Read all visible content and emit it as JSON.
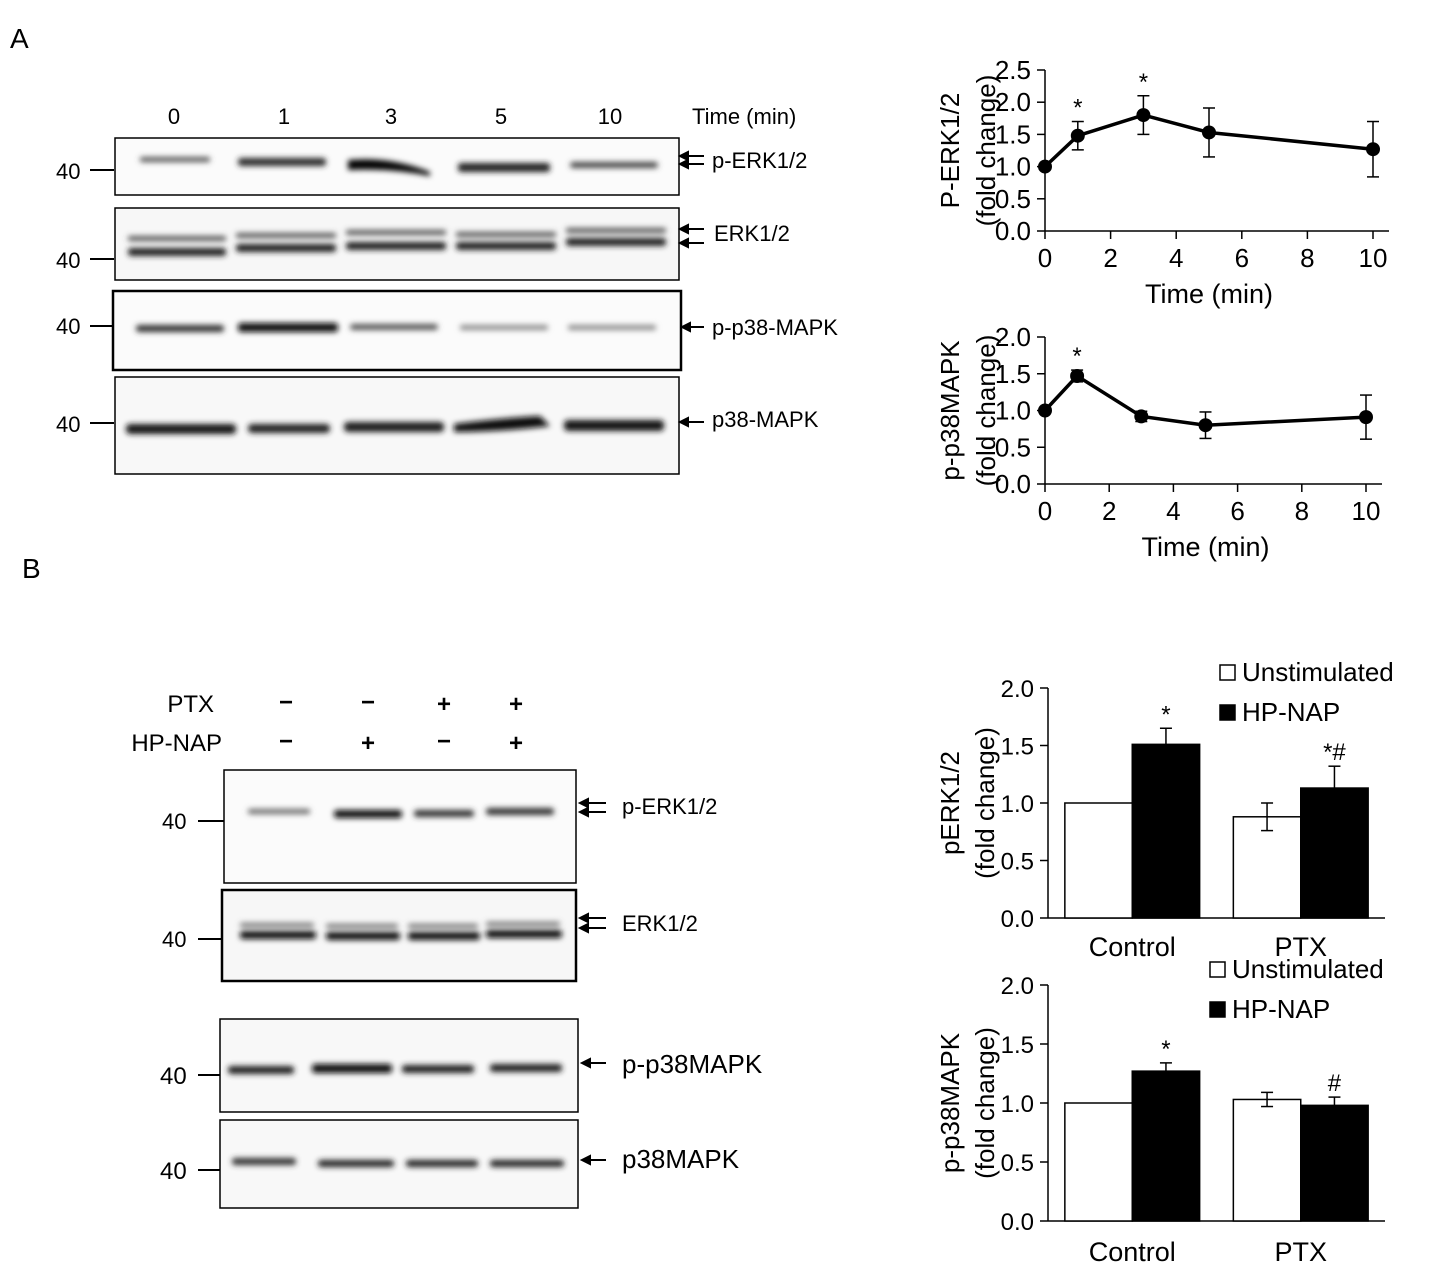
{
  "panels": {
    "a": "A",
    "b": "B"
  },
  "blot_a": {
    "lane_header": [
      "0",
      "1",
      "3",
      "5",
      "10"
    ],
    "lane_header_label": "Time (min)",
    "mw_marker": "40",
    "bands": [
      "p-ERK1/2",
      "ERK1/2",
      "p-p38-MAPK",
      "p38-MAPK"
    ]
  },
  "blot_b": {
    "rows": [
      {
        "label": "PTX",
        "signs": [
          "−",
          "−",
          "+",
          "+"
        ]
      },
      {
        "label": "HP-NAP",
        "signs": [
          "−",
          "+",
          "−",
          "+"
        ]
      }
    ],
    "mw_marker": "40",
    "bands": [
      "p-ERK1/2",
      "ERK1/2",
      "p-p38MAPK",
      "p38MAPK"
    ]
  },
  "colors": {
    "bar_unstimulated": "#ffffff",
    "bar_hpnap": "#000000",
    "ink": "#000000"
  },
  "chart_data": [
    {
      "type": "line",
      "title": "",
      "xlabel": "Time (min)",
      "ylabel": "P-ERK1/2 (fold change)",
      "ylabel_lines": [
        "P-ERK1/2",
        "(fold change)"
      ],
      "x": [
        0,
        1,
        3,
        5,
        10
      ],
      "values": [
        1.0,
        1.48,
        1.8,
        1.53,
        1.27
      ],
      "errors": [
        0.0,
        0.22,
        0.3,
        0.38,
        0.43
      ],
      "significance": [
        "",
        "*",
        "*",
        "",
        ""
      ],
      "xlim": [
        0,
        10
      ],
      "ylim": [
        0,
        2.5
      ],
      "xticks": [
        "0",
        "2",
        "4",
        "6",
        "8",
        "10"
      ],
      "yticks": [
        "0.0",
        "0.5",
        "1.0",
        "1.5",
        "2.0",
        "2.5"
      ]
    },
    {
      "type": "line",
      "title": "",
      "xlabel": "Time (min)",
      "ylabel": "p-p38MAPK (fold change)",
      "ylabel_lines": [
        "p-p38MAPK",
        "(fold change)"
      ],
      "x": [
        0,
        1,
        3,
        5,
        10
      ],
      "values": [
        1.0,
        1.47,
        0.92,
        0.8,
        0.91
      ],
      "errors": [
        0.0,
        0.08,
        0.07,
        0.18,
        0.3
      ],
      "significance": [
        "",
        "*",
        "",
        "",
        ""
      ],
      "xlim": [
        0,
        10
      ],
      "ylim": [
        0,
        2.0
      ],
      "xticks": [
        "0",
        "2",
        "4",
        "6",
        "8",
        "10"
      ],
      "yticks": [
        "0.0",
        "0.5",
        "1.0",
        "1.5",
        "2.0"
      ]
    },
    {
      "type": "bar",
      "title": "",
      "xlabel": "",
      "ylabel": "pERK1/2 (fold change)",
      "ylabel_lines": [
        "pERK1/2",
        "(fold change)"
      ],
      "categories": [
        "Control",
        "PTX"
      ],
      "series": [
        {
          "name": "Unstimulated",
          "values": [
            1.0,
            0.88
          ],
          "errors": [
            0.0,
            0.12
          ],
          "significance": [
            "",
            ""
          ]
        },
        {
          "name": "HP-NAP",
          "values": [
            1.51,
            1.13
          ],
          "errors": [
            0.14,
            0.19
          ],
          "significance": [
            "*",
            "*#"
          ]
        }
      ],
      "ylim": [
        0,
        2.0
      ],
      "yticks": [
        "0.0",
        "0.5",
        "1.0",
        "1.5",
        "2.0"
      ],
      "legend": "top-right"
    },
    {
      "type": "bar",
      "title": "",
      "xlabel": "",
      "ylabel": "p-p38MAPK (fold change)",
      "ylabel_lines": [
        "p-p38MAPK",
        "(fold change)"
      ],
      "categories": [
        "Control",
        "PTX"
      ],
      "series": [
        {
          "name": "Unstimulated",
          "values": [
            1.0,
            1.03
          ],
          "errors": [
            0.0,
            0.06
          ],
          "significance": [
            "",
            ""
          ]
        },
        {
          "name": "HP-NAP",
          "values": [
            1.27,
            0.98
          ],
          "errors": [
            0.07,
            0.07
          ],
          "significance": [
            "*",
            "#"
          ]
        }
      ],
      "ylim": [
        0,
        2.0
      ],
      "yticks": [
        "0.0",
        "0.5",
        "1.0",
        "1.5",
        "2.0"
      ],
      "legend": "top-right"
    }
  ]
}
